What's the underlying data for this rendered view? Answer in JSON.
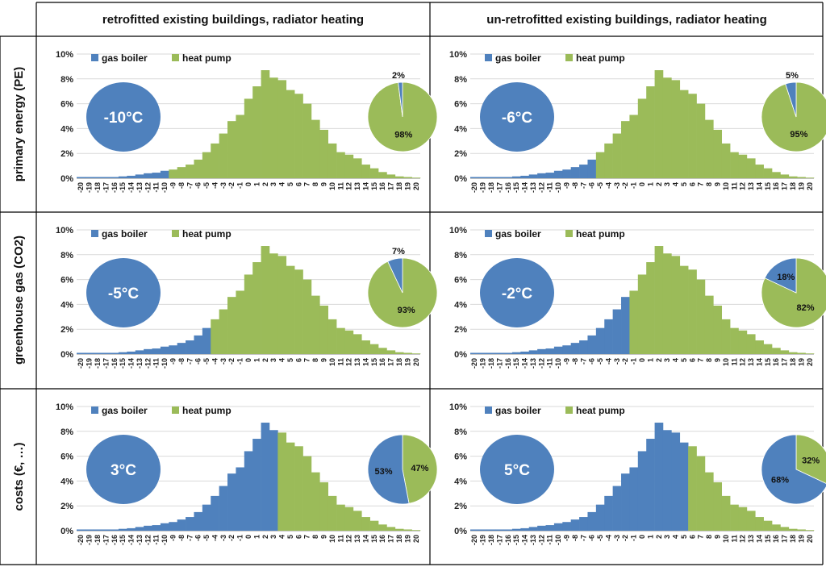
{
  "column_headers": [
    "retrofitted existing buildings, radiator heating",
    "un-retrofitted existing buildings, radiator heating"
  ],
  "row_headers": [
    "primary energy (PE)",
    "greenhouse gas (CO2)",
    "costs (€, …)"
  ],
  "colors": {
    "gas_boiler": "#4f81bd",
    "heat_pump": "#9bbb59",
    "grid": "#d9d9d9",
    "border": "#000000"
  },
  "chart_data": {
    "type": "bar",
    "categories": [
      "-20",
      "-19",
      "-18",
      "-17",
      "-16",
      "-15",
      "-14",
      "-13",
      "-12",
      "-11",
      "-10",
      "-9",
      "-8",
      "-7",
      "-6",
      "-5",
      "-4",
      "-3",
      "-2",
      "-1",
      "0",
      "1",
      "2",
      "3",
      "4",
      "5",
      "6",
      "7",
      "8",
      "9",
      "10",
      "11",
      "12",
      "13",
      "14",
      "15",
      "16",
      "17",
      "18",
      "19",
      "20"
    ],
    "values": [
      0.1,
      0.1,
      0.1,
      0.1,
      0.1,
      0.15,
      0.2,
      0.3,
      0.4,
      0.45,
      0.6,
      0.7,
      0.9,
      1.1,
      1.5,
      2.1,
      2.8,
      3.6,
      4.6,
      5.1,
      6.4,
      7.4,
      8.7,
      8.1,
      7.9,
      7.1,
      6.8,
      6.0,
      4.7,
      3.9,
      2.8,
      2.1,
      1.9,
      1.6,
      1.1,
      0.8,
      0.5,
      0.3,
      0.15,
      0.1,
      0.05
    ],
    "ylim": [
      0,
      10
    ],
    "yticks": [
      "0%",
      "2%",
      "4%",
      "6%",
      "8%",
      "10%"
    ],
    "legend": [
      "gas boiler",
      "heat pump"
    ],
    "legend_position": "top-left",
    "panels": [
      {
        "row": 0,
        "col": 0,
        "threshold": -10,
        "label": "-10°C",
        "gas_pct": 2,
        "gas_label": "2%",
        "hp_label": "98%"
      },
      {
        "row": 0,
        "col": 1,
        "threshold": -6,
        "label": "-6°C",
        "gas_pct": 5,
        "gas_label": "5%",
        "hp_label": "95%"
      },
      {
        "row": 1,
        "col": 0,
        "threshold": -5,
        "label": "-5°C",
        "gas_pct": 7,
        "gas_label": "7%",
        "hp_label": "93%"
      },
      {
        "row": 1,
        "col": 1,
        "threshold": -2,
        "label": "-2°C",
        "gas_pct": 18,
        "gas_label": "18%",
        "hp_label": "82%"
      },
      {
        "row": 2,
        "col": 0,
        "threshold": 3,
        "label": "3°C",
        "gas_pct": 53,
        "gas_label": "53%",
        "hp_label": "47%"
      },
      {
        "row": 2,
        "col": 1,
        "threshold": 5,
        "label": "5°C",
        "gas_pct": 68,
        "gas_label": "68%",
        "hp_label": "32%"
      }
    ]
  }
}
